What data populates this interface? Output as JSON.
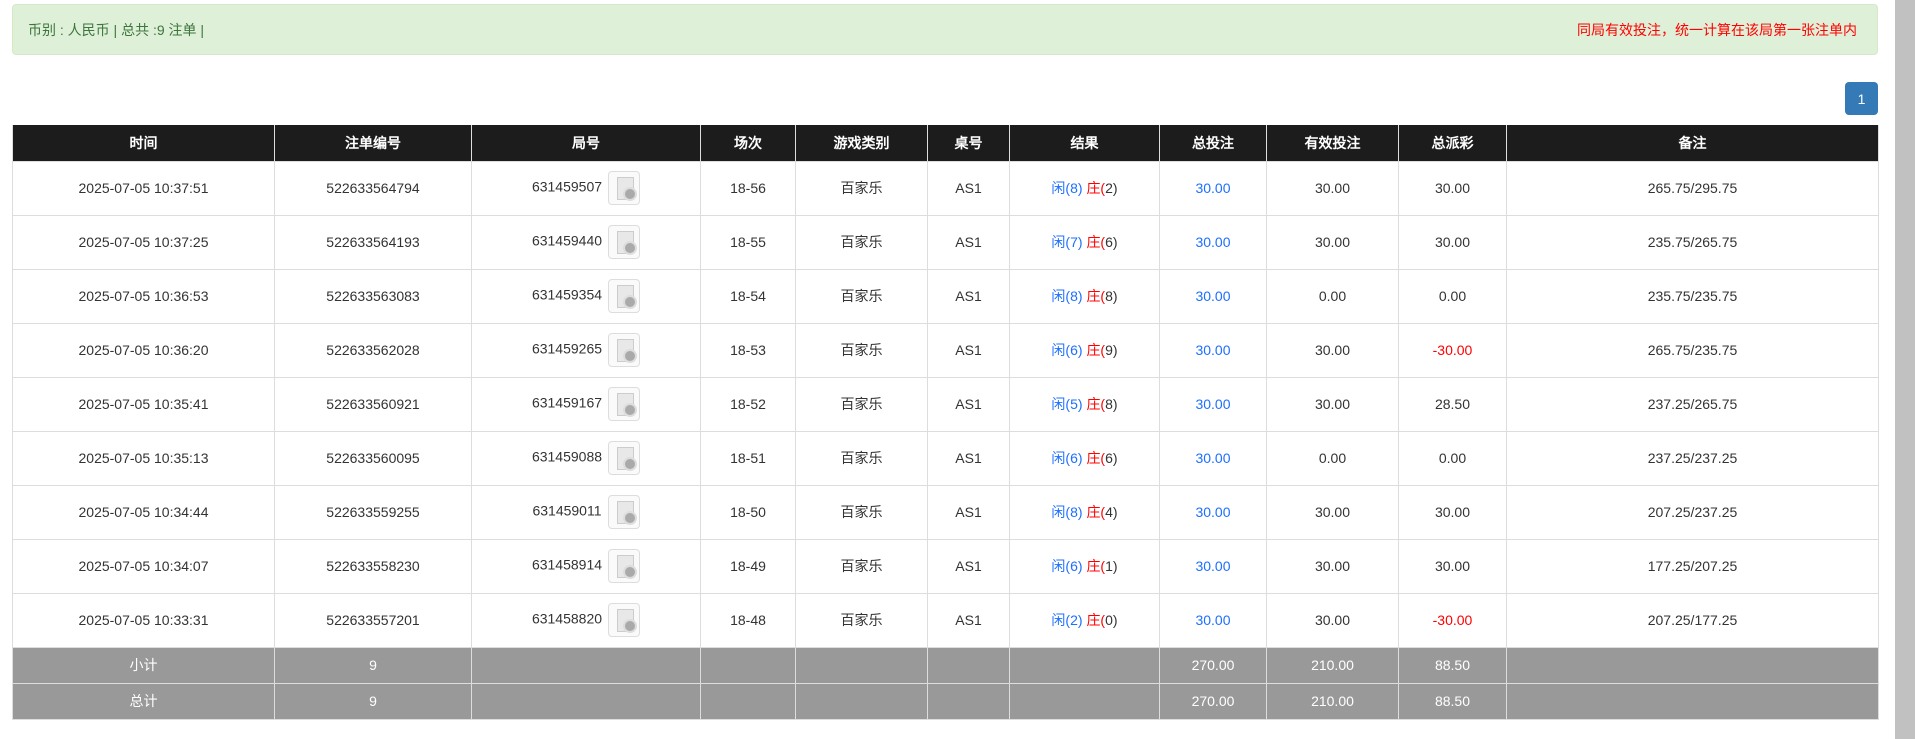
{
  "info": {
    "summary": "币别 : 人民币 | 总共 :9 注单 |",
    "notice": "同局有效投注，统一计算在该局第一张注单内"
  },
  "pagination": {
    "current": "1"
  },
  "colors": {
    "blue": "#1e6fff",
    "red": "#ff0000",
    "header_bg": "#1c1c1c",
    "summary_bg": "#999999"
  },
  "table": {
    "headers": [
      "时间",
      "注单编号",
      "局号",
      "场次",
      "游戏类别",
      "桌号",
      "结果",
      "总投注",
      "有效投注",
      "总派彩",
      "备注"
    ],
    "rows": [
      {
        "time": "2025-07-05 10:37:51",
        "bet_id": "522633564794",
        "round": "631459507",
        "session": "18-56",
        "game": "百家乐",
        "table": "AS1",
        "player": "闲(8)",
        "banker": "庄(2)",
        "total": "30.00",
        "valid": "30.00",
        "payout": "30.00",
        "payout_neg": false,
        "note": "265.75/295.75"
      },
      {
        "time": "2025-07-05 10:37:25",
        "bet_id": "522633564193",
        "round": "631459440",
        "session": "18-55",
        "game": "百家乐",
        "table": "AS1",
        "player": "闲(7)",
        "banker": "庄(6)",
        "total": "30.00",
        "valid": "30.00",
        "payout": "30.00",
        "payout_neg": false,
        "note": "235.75/265.75"
      },
      {
        "time": "2025-07-05 10:36:53",
        "bet_id": "522633563083",
        "round": "631459354",
        "session": "18-54",
        "game": "百家乐",
        "table": "AS1",
        "player": "闲(8)",
        "banker": "庄(8)",
        "total": "30.00",
        "valid": "0.00",
        "payout": "0.00",
        "payout_neg": false,
        "note": "235.75/235.75"
      },
      {
        "time": "2025-07-05 10:36:20",
        "bet_id": "522633562028",
        "round": "631459265",
        "session": "18-53",
        "game": "百家乐",
        "table": "AS1",
        "player": "闲(6)",
        "banker": "庄(9)",
        "total": "30.00",
        "valid": "30.00",
        "payout": "-30.00",
        "payout_neg": true,
        "note": "265.75/235.75"
      },
      {
        "time": "2025-07-05 10:35:41",
        "bet_id": "522633560921",
        "round": "631459167",
        "session": "18-52",
        "game": "百家乐",
        "table": "AS1",
        "player": "闲(5)",
        "banker": "庄(8)",
        "total": "30.00",
        "valid": "30.00",
        "payout": "28.50",
        "payout_neg": false,
        "note": "237.25/265.75"
      },
      {
        "time": "2025-07-05 10:35:13",
        "bet_id": "522633560095",
        "round": "631459088",
        "session": "18-51",
        "game": "百家乐",
        "table": "AS1",
        "player": "闲(6)",
        "banker": "庄(6)",
        "total": "30.00",
        "valid": "0.00",
        "payout": "0.00",
        "payout_neg": false,
        "note": "237.25/237.25"
      },
      {
        "time": "2025-07-05 10:34:44",
        "bet_id": "522633559255",
        "round": "631459011",
        "session": "18-50",
        "game": "百家乐",
        "table": "AS1",
        "player": "闲(8)",
        "banker": "庄(4)",
        "total": "30.00",
        "valid": "30.00",
        "payout": "30.00",
        "payout_neg": false,
        "note": "207.25/237.25"
      },
      {
        "time": "2025-07-05 10:34:07",
        "bet_id": "522633558230",
        "round": "631458914",
        "session": "18-49",
        "game": "百家乐",
        "table": "AS1",
        "player": "闲(6)",
        "banker": "庄(1)",
        "total": "30.00",
        "valid": "30.00",
        "payout": "30.00",
        "payout_neg": false,
        "note": "177.25/207.25"
      },
      {
        "time": "2025-07-05 10:33:31",
        "bet_id": "522633557201",
        "round": "631458820",
        "session": "18-48",
        "game": "百家乐",
        "table": "AS1",
        "player": "闲(2)",
        "banker": "庄(0)",
        "total": "30.00",
        "valid": "30.00",
        "payout": "-30.00",
        "payout_neg": true,
        "note": "207.25/177.25"
      }
    ],
    "subtotal": {
      "label": "小计",
      "count": "9",
      "total": "270.00",
      "valid": "210.00",
      "payout": "88.50"
    },
    "grandtotal": {
      "label": "总计",
      "count": "9",
      "total": "270.00",
      "valid": "210.00",
      "payout": "88.50"
    }
  }
}
